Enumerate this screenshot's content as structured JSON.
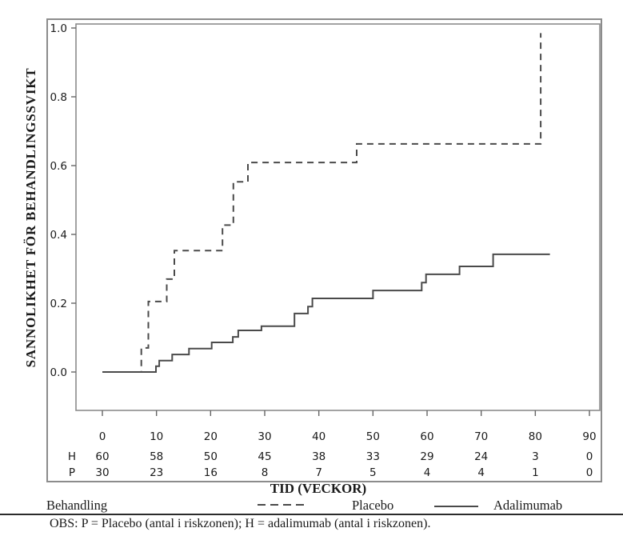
{
  "figure": {
    "ylabel": "SANNOLIKHET FÖR BEHANDLINGSSVIKT",
    "xlabel": "TID (VECKOR)",
    "legend": {
      "title": "Behandling",
      "items": [
        {
          "label": "Placebo",
          "style": "dashed"
        },
        {
          "label": "Adalimumab",
          "style": "solid"
        }
      ]
    },
    "footnote": "OBS: P = Placebo (antal i riskzonen); H = adalimumab (antal i riskzonen)."
  },
  "colors": {
    "curve": "#4a4a4a",
    "frame": "#8c8c8c",
    "text": "#1a1a1a",
    "rule": "#2b2b2b"
  },
  "chart_data": {
    "type": "line",
    "subtype": "kaplan-meier-step",
    "title": "",
    "xlabel": "TID (VECKOR)",
    "ylabel": "SANNOLIKHET FÖR BEHANDLINGSSVIKT",
    "xlim": [
      -5,
      93
    ],
    "ylim": [
      -0.12,
      1.02
    ],
    "grid": false,
    "legend_position": "bottom",
    "x_ticks": [
      0,
      10,
      20,
      30,
      40,
      50,
      60,
      70,
      80,
      90
    ],
    "y_ticks": [
      "0.0",
      "0.2",
      "0.4",
      "0.6",
      "0.8",
      "1.0"
    ],
    "series": [
      {
        "name": "Placebo",
        "line_style": "dashed",
        "points": [
          [
            0,
            0
          ],
          [
            7.2,
            0
          ],
          [
            7.2,
            0.07
          ],
          [
            8.5,
            0.07
          ],
          [
            8.5,
            0.205
          ],
          [
            11.9,
            0.205
          ],
          [
            11.9,
            0.27
          ],
          [
            13.3,
            0.27
          ],
          [
            13.3,
            0.353
          ],
          [
            22.2,
            0.353
          ],
          [
            22.2,
            0.427
          ],
          [
            24.2,
            0.427
          ],
          [
            24.2,
            0.553
          ],
          [
            26.9,
            0.553
          ],
          [
            26.9,
            0.609
          ],
          [
            47,
            0.609
          ],
          [
            47,
            0.663
          ],
          [
            81,
            0.663
          ],
          [
            81,
            0.985
          ]
        ]
      },
      {
        "name": "Adalimumab",
        "line_style": "solid",
        "points": [
          [
            0,
            0
          ],
          [
            9.9,
            0
          ],
          [
            9.9,
            0.017
          ],
          [
            10.5,
            0.017
          ],
          [
            10.5,
            0.033
          ],
          [
            12.9,
            0.033
          ],
          [
            12.9,
            0.051
          ],
          [
            16,
            0.051
          ],
          [
            16,
            0.068
          ],
          [
            20.2,
            0.068
          ],
          [
            20.2,
            0.086
          ],
          [
            24.1,
            0.086
          ],
          [
            24.1,
            0.102
          ],
          [
            25.1,
            0.102
          ],
          [
            25.1,
            0.121
          ],
          [
            29.4,
            0.121
          ],
          [
            29.4,
            0.133
          ],
          [
            35.5,
            0.133
          ],
          [
            35.5,
            0.17
          ],
          [
            38,
            0.17
          ],
          [
            38,
            0.19
          ],
          [
            38.8,
            0.19
          ],
          [
            38.8,
            0.214
          ],
          [
            50,
            0.214
          ],
          [
            50,
            0.237
          ],
          [
            59,
            0.237
          ],
          [
            59,
            0.26
          ],
          [
            59.8,
            0.26
          ],
          [
            59.8,
            0.284
          ],
          [
            66,
            0.284
          ],
          [
            66,
            0.307
          ],
          [
            72.2,
            0.307
          ],
          [
            72.2,
            0.342
          ],
          [
            82.7,
            0.342
          ]
        ]
      }
    ],
    "risk_table": {
      "weeks": [
        0,
        10,
        20,
        30,
        40,
        50,
        60,
        70,
        80,
        90
      ],
      "rows": [
        {
          "label": "H",
          "values": [
            60,
            58,
            50,
            45,
            38,
            33,
            29,
            24,
            3,
            0
          ]
        },
        {
          "label": "P",
          "values": [
            30,
            23,
            16,
            8,
            7,
            5,
            4,
            4,
            1,
            0
          ]
        }
      ]
    }
  }
}
